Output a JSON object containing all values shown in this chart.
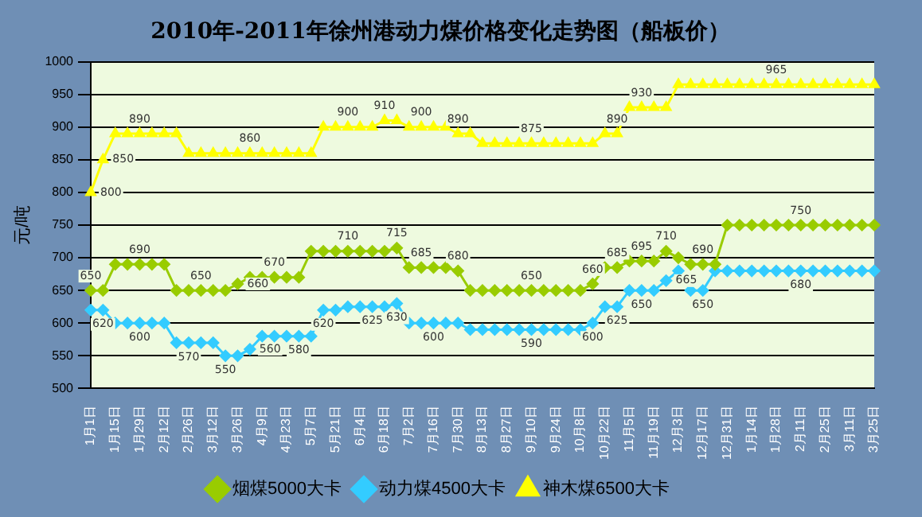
{
  "chart_data": {
    "type": "line",
    "title": "2010年-2011年徐州港动力煤价格变化走势图（船板价）",
    "ylabel": "元/吨",
    "categories": [
      "1月1日",
      null,
      "1月15日",
      null,
      "1月29日",
      null,
      "2月12日",
      null,
      "2月26日",
      null,
      "3月12日",
      null,
      "3月26日",
      null,
      "4月9日",
      null,
      "4月23日",
      null,
      "5月7日",
      null,
      "5月21日",
      null,
      "6月4日",
      null,
      "6月18日",
      null,
      "7月2日",
      null,
      "7月16日",
      null,
      "7月30日",
      null,
      "8月13日",
      null,
      "8月27日",
      null,
      "9月10日",
      null,
      "9月24日",
      null,
      "10月8日",
      null,
      "10月22日",
      null,
      "11月5日",
      null,
      "11月19日",
      null,
      "12月3日",
      null,
      "12月17日",
      null,
      "12月31日",
      null,
      "1月14日",
      null,
      "1月28日",
      null,
      "2月11日",
      null,
      "2月25日",
      null,
      "3月11日",
      null,
      "3月25日"
    ],
    "series": [
      {
        "name": "烟煤5000大卡",
        "color": "#99cc00",
        "marker": "diamond",
        "values": [
          650,
          650,
          690,
          690,
          690,
          690,
          690,
          650,
          650,
          650,
          650,
          650,
          660,
          670,
          670,
          670,
          670,
          670,
          710,
          710,
          710,
          710,
          710,
          710,
          710,
          715,
          685,
          685,
          685,
          685,
          680,
          650,
          650,
          650,
          650,
          650,
          650,
          650,
          650,
          650,
          650,
          660,
          685,
          685,
          695,
          695,
          695,
          710,
          700,
          690,
          690,
          690,
          750,
          750,
          750,
          750,
          750,
          750,
          750,
          750,
          750,
          750,
          750,
          750,
          750
        ],
        "value_labels": [
          "650",
          null,
          null,
          null,
          "690",
          null,
          null,
          null,
          null,
          "650",
          null,
          null,
          "660",
          null,
          null,
          "670",
          null,
          null,
          null,
          null,
          null,
          "710",
          null,
          null,
          null,
          "715",
          null,
          "685",
          null,
          null,
          "680",
          null,
          null,
          null,
          null,
          null,
          "650",
          null,
          null,
          null,
          null,
          "660",
          null,
          "685",
          null,
          "695",
          null,
          "710",
          null,
          null,
          "690",
          null,
          null,
          null,
          null,
          null,
          null,
          null,
          "750",
          null,
          null,
          null,
          null,
          null,
          null
        ]
      },
      {
        "name": "动力煤4500大卡",
        "color": "#33ccff",
        "marker": "diamond",
        "values": [
          620,
          620,
          600,
          600,
          600,
          600,
          600,
          570,
          570,
          570,
          570,
          550,
          550,
          560,
          580,
          580,
          580,
          580,
          580,
          620,
          620,
          625,
          625,
          625,
          625,
          630,
          600,
          600,
          600,
          600,
          600,
          590,
          590,
          590,
          590,
          590,
          590,
          590,
          590,
          590,
          590,
          600,
          625,
          625,
          650,
          650,
          650,
          665,
          680,
          650,
          650,
          680,
          680,
          680,
          680,
          680,
          680,
          680,
          680,
          680,
          680,
          680,
          680,
          680,
          680
        ],
        "value_labels": [
          null,
          "620",
          null,
          null,
          "600",
          null,
          null,
          null,
          "570",
          null,
          null,
          "550",
          null,
          "560",
          null,
          null,
          null,
          "580",
          null,
          "620",
          null,
          null,
          null,
          "625",
          null,
          "630",
          null,
          null,
          "600",
          null,
          null,
          null,
          null,
          null,
          null,
          null,
          "590",
          null,
          null,
          null,
          null,
          "600",
          null,
          "625",
          null,
          "650",
          null,
          "665",
          null,
          null,
          "650",
          null,
          null,
          null,
          null,
          null,
          null,
          null,
          "680",
          null,
          null,
          null,
          null,
          null,
          null
        ]
      },
      {
        "name": "神木煤6500大卡",
        "color": "#ffff00",
        "marker": "triangle",
        "values": [
          800,
          850,
          890,
          890,
          890,
          890,
          890,
          890,
          860,
          860,
          860,
          860,
          860,
          860,
          860,
          860,
          860,
          860,
          860,
          900,
          900,
          900,
          900,
          900,
          910,
          910,
          900,
          900,
          900,
          900,
          890,
          890,
          875,
          875,
          875,
          875,
          875,
          875,
          875,
          875,
          875,
          875,
          890,
          890,
          930,
          930,
          930,
          930,
          965,
          965,
          965,
          965,
          965,
          965,
          965,
          965,
          965,
          965,
          965,
          965,
          965,
          965,
          965,
          965,
          965
        ],
        "value_labels": [
          "800",
          "850",
          null,
          null,
          "890",
          null,
          null,
          null,
          null,
          null,
          null,
          null,
          null,
          "860",
          null,
          null,
          null,
          null,
          null,
          null,
          null,
          "900",
          null,
          null,
          "910",
          null,
          null,
          "900",
          null,
          null,
          "890",
          null,
          null,
          null,
          null,
          null,
          "875",
          null,
          null,
          null,
          null,
          null,
          null,
          "890",
          null,
          "930",
          null,
          null,
          null,
          null,
          null,
          null,
          null,
          null,
          null,
          null,
          "965",
          null,
          null,
          null,
          null,
          null,
          null,
          null,
          null
        ]
      }
    ],
    "ylim": [
      500,
      1000
    ],
    "yticks": [
      500,
      550,
      600,
      650,
      700,
      750,
      800,
      850,
      900,
      950,
      1000
    ],
    "grid": "y",
    "legend": "bottom"
  }
}
